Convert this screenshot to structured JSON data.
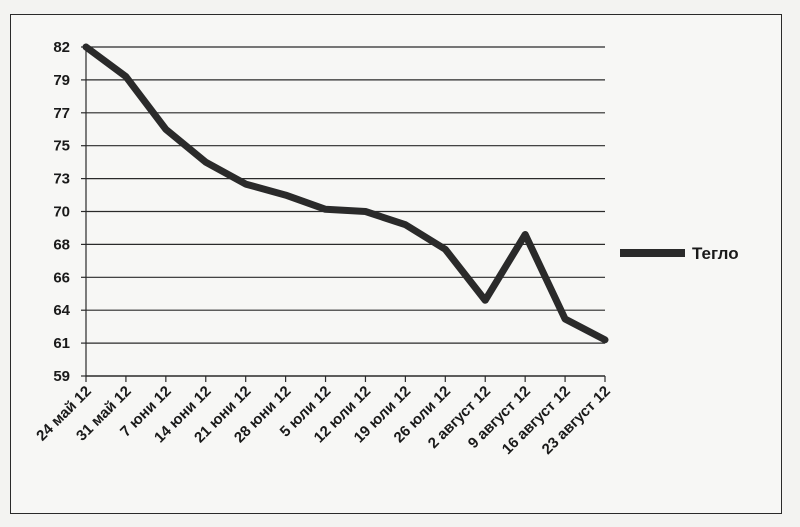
{
  "chart_data": {
    "type": "line",
    "categories": [
      "24 май 12",
      "31 май 12",
      "7 юни 12",
      "14 юни 12",
      "21 юни 12",
      "28 юни 12",
      "5 юли 12",
      "12 юли 12",
      "19 юли 12",
      "26 юли 12",
      "2 август 12",
      "9 август 12",
      "16 август 12",
      "23 август 12"
    ],
    "y_ticks": [
      "59",
      "61",
      "64",
      "66",
      "68",
      "70",
      "73",
      "75",
      "77",
      "79",
      "82"
    ],
    "series": [
      {
        "name": "Тегло",
        "color": "#2a2a2a",
        "values": [
          82,
          79.3,
          76,
          74,
          72.5,
          71.5,
          70.2,
          70,
          69.2,
          67.7,
          64.6,
          68.6,
          63.2,
          61.3
        ]
      }
    ],
    "legend_position": "right",
    "grid": true
  }
}
